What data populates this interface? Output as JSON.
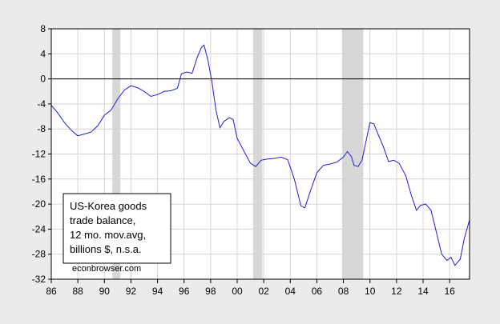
{
  "chart_data": {
    "type": "line",
    "title": "",
    "xlabel": "",
    "ylabel": "",
    "xlim": [
      1986,
      2017.5
    ],
    "ylim": [
      -32,
      8
    ],
    "x_ticks": [
      {
        "value": 1986,
        "label": "86"
      },
      {
        "value": 1988,
        "label": "88"
      },
      {
        "value": 1990,
        "label": "90"
      },
      {
        "value": 1992,
        "label": "92"
      },
      {
        "value": 1994,
        "label": "94"
      },
      {
        "value": 1996,
        "label": "96"
      },
      {
        "value": 1998,
        "label": "98"
      },
      {
        "value": 2000,
        "label": "00"
      },
      {
        "value": 2002,
        "label": "02"
      },
      {
        "value": 2004,
        "label": "04"
      },
      {
        "value": 2006,
        "label": "06"
      },
      {
        "value": 2008,
        "label": "08"
      },
      {
        "value": 2010,
        "label": "10"
      },
      {
        "value": 2012,
        "label": "12"
      },
      {
        "value": 2014,
        "label": "14"
      },
      {
        "value": 2016,
        "label": "16"
      }
    ],
    "y_ticks": [
      8,
      4,
      0,
      -4,
      -8,
      -12,
      -16,
      -20,
      -24,
      -28,
      -32
    ],
    "grid": true,
    "zero_line": true,
    "recessions": [
      [
        1990.6,
        1991.2
      ],
      [
        2001.2,
        2001.9
      ],
      [
        2007.9,
        2009.5
      ]
    ],
    "series": [
      {
        "name": "",
        "color": "#1f1fd6",
        "points": [
          [
            1986.0,
            -4.2
          ],
          [
            1986.5,
            -5.5
          ],
          [
            1987.0,
            -7.0
          ],
          [
            1987.5,
            -8.2
          ],
          [
            1988.0,
            -9.1
          ],
          [
            1988.5,
            -8.8
          ],
          [
            1989.0,
            -8.5
          ],
          [
            1989.5,
            -7.5
          ],
          [
            1990.0,
            -5.8
          ],
          [
            1990.5,
            -5.0
          ],
          [
            1991.0,
            -3.2
          ],
          [
            1991.5,
            -1.8
          ],
          [
            1992.0,
            -1.1
          ],
          [
            1992.5,
            -1.4
          ],
          [
            1993.0,
            -2.0
          ],
          [
            1993.5,
            -2.8
          ],
          [
            1994.0,
            -2.5
          ],
          [
            1994.5,
            -2.0
          ],
          [
            1995.0,
            -1.9
          ],
          [
            1995.5,
            -1.5
          ],
          [
            1995.8,
            0.8
          ],
          [
            1996.2,
            1.1
          ],
          [
            1996.6,
            0.9
          ],
          [
            1997.0,
            3.5
          ],
          [
            1997.3,
            5.0
          ],
          [
            1997.5,
            5.4
          ],
          [
            1997.8,
            3.0
          ],
          [
            1998.1,
            -0.5
          ],
          [
            1998.4,
            -5.0
          ],
          [
            1998.7,
            -7.8
          ],
          [
            1999.0,
            -6.8
          ],
          [
            1999.4,
            -6.2
          ],
          [
            1999.7,
            -6.5
          ],
          [
            2000.0,
            -9.5
          ],
          [
            2000.5,
            -11.5
          ],
          [
            2001.0,
            -13.5
          ],
          [
            2001.4,
            -14.0
          ],
          [
            2001.8,
            -13.0
          ],
          [
            2002.3,
            -12.8
          ],
          [
            2002.8,
            -12.7
          ],
          [
            2003.3,
            -12.5
          ],
          [
            2003.8,
            -12.9
          ],
          [
            2004.3,
            -16.0
          ],
          [
            2004.8,
            -20.3
          ],
          [
            2005.1,
            -20.6
          ],
          [
            2005.5,
            -18.0
          ],
          [
            2006.0,
            -15.0
          ],
          [
            2006.5,
            -13.8
          ],
          [
            2007.0,
            -13.6
          ],
          [
            2007.5,
            -13.3
          ],
          [
            2008.0,
            -12.5
          ],
          [
            2008.3,
            -11.6
          ],
          [
            2008.6,
            -12.4
          ],
          [
            2008.8,
            -13.8
          ],
          [
            2009.1,
            -14.0
          ],
          [
            2009.4,
            -13.0
          ],
          [
            2009.7,
            -10.0
          ],
          [
            2010.0,
            -7.0
          ],
          [
            2010.3,
            -7.2
          ],
          [
            2010.6,
            -8.8
          ],
          [
            2011.0,
            -10.8
          ],
          [
            2011.4,
            -13.2
          ],
          [
            2011.8,
            -13.0
          ],
          [
            2012.2,
            -13.5
          ],
          [
            2012.7,
            -15.5
          ],
          [
            2013.1,
            -18.5
          ],
          [
            2013.5,
            -21.0
          ],
          [
            2013.8,
            -20.2
          ],
          [
            2014.2,
            -20.0
          ],
          [
            2014.6,
            -21.0
          ],
          [
            2015.0,
            -24.5
          ],
          [
            2015.4,
            -28.0
          ],
          [
            2015.8,
            -29.0
          ],
          [
            2016.1,
            -28.5
          ],
          [
            2016.4,
            -29.8
          ],
          [
            2016.8,
            -28.8
          ],
          [
            2017.1,
            -25.5
          ],
          [
            2017.5,
            -22.5
          ]
        ]
      }
    ],
    "legend_lines": [
      "US-Korea goods",
      "trade balance,",
      "12 mo. mov.avg,",
      "billions $, n.s.a."
    ],
    "annotation": "econbrowser.com"
  },
  "colors": {
    "background": "#ebebeb",
    "plot_area": "#ffffff",
    "recession_band": "#d7d7d7",
    "grid": "#d4d4d4",
    "zero_line": "#000000",
    "line": "#1f1fd6"
  }
}
